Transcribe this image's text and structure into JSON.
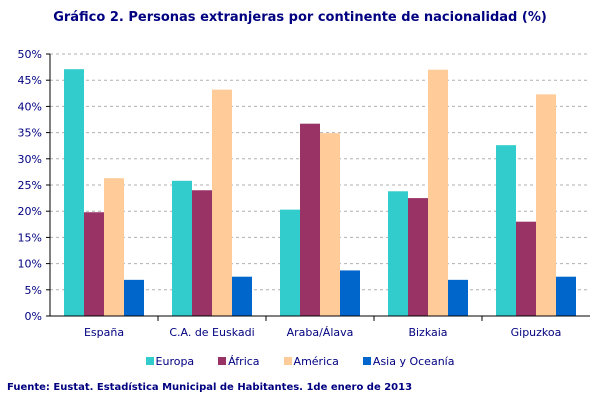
{
  "chart_data": {
    "type": "bar",
    "title": "Gráfico 2. Personas extranjeras por continente de nacionalidad (%)",
    "categories": [
      "España",
      "C.A. de Euskadi",
      "Araba/Álava",
      "Bizkaia",
      "Gipuzkoa"
    ],
    "series": [
      {
        "name": "Europa",
        "color": "#33CCCC",
        "values": [
          47.1,
          25.8,
          20.3,
          23.8,
          32.6
        ]
      },
      {
        "name": "África",
        "color": "#993366",
        "values": [
          19.8,
          24.0,
          36.7,
          22.5,
          18.0
        ]
      },
      {
        "name": "América",
        "color": "#FFCC99",
        "values": [
          26.3,
          43.2,
          34.9,
          47.0,
          42.3
        ]
      },
      {
        "name": "Asia y Oceanía",
        "color": "#0066CC",
        "values": [
          6.9,
          7.5,
          8.7,
          6.9,
          7.5
        ]
      }
    ],
    "ylim": [
      0,
      50
    ],
    "yticks": [
      "0%",
      "5%",
      "10%",
      "15%",
      "20%",
      "25%",
      "30%",
      "35%",
      "40%",
      "45%",
      "50%"
    ],
    "grid": true,
    "legend": "bottom",
    "source": "Fuente: Eustat. Estadística Municipal de Habitantes. 1de enero de 2013"
  }
}
